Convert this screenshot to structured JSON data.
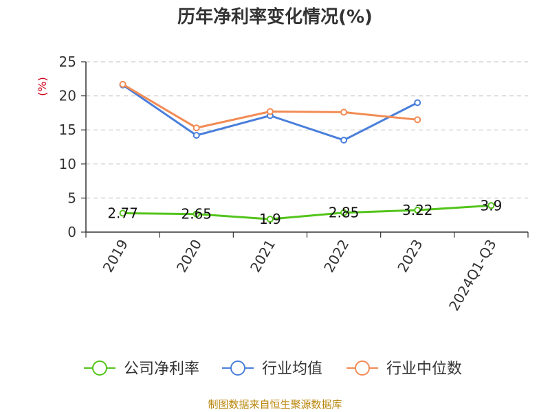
{
  "chart_data": {
    "type": "line",
    "title": "历年净利率变化情况(%)",
    "ylabel": "(%)",
    "xlabel": "",
    "categories": [
      "2019",
      "2020",
      "2021",
      "2022",
      "2023",
      "2024Q1-Q3"
    ],
    "ylim": [
      0,
      25
    ],
    "yticks": [
      0,
      5,
      10,
      15,
      20,
      25
    ],
    "grid": true,
    "legend_position": "bottom",
    "series": [
      {
        "name": "公司净利率",
        "color": "#52c41a",
        "values": [
          2.77,
          2.65,
          1.9,
          2.85,
          3.22,
          3.9
        ],
        "labels": [
          "2.77",
          "2.65",
          "1.9",
          "2.85",
          "3.22",
          "3.9"
        ]
      },
      {
        "name": "行业均值",
        "color": "#4a7fdb",
        "values": [
          21.6,
          14.2,
          17.1,
          13.5,
          19.0,
          null
        ]
      },
      {
        "name": "行业中位数",
        "color": "#f28b54",
        "values": [
          21.7,
          15.3,
          17.7,
          17.6,
          16.5,
          null
        ]
      }
    ]
  },
  "footer": {
    "source": "制图数据来自恒生聚源数据库"
  }
}
